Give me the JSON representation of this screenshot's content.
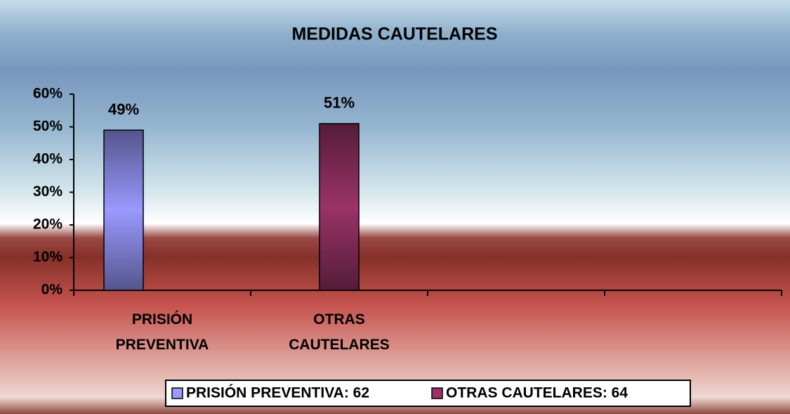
{
  "chart_data": {
    "type": "bar",
    "title": "MEDIDAS CAUTELARES",
    "categories": [
      "PRISIÓN PREVENTIVA",
      "OTRAS CAUTELARES",
      null,
      null
    ],
    "series": [
      {
        "name": "PRISIÓN PREVENTIVA: 62",
        "color": "#9999ff",
        "values": [
          49,
          null,
          null,
          null
        ],
        "value_labels": [
          "49%",
          null,
          null,
          null
        ]
      },
      {
        "name": "OTRAS CAUTELARES: 64",
        "color": "#993366",
        "values": [
          null,
          51,
          null,
          null
        ],
        "value_labels": [
          null,
          "51%",
          null,
          null
        ]
      }
    ],
    "ylim": [
      0,
      60
    ],
    "yticks": [
      {
        "value": 0,
        "label": "0%"
      },
      {
        "value": 10,
        "label": "10%"
      },
      {
        "value": 20,
        "label": "20%"
      },
      {
        "value": 30,
        "label": "30%"
      },
      {
        "value": 40,
        "label": "40%"
      },
      {
        "value": 50,
        "label": "50%"
      },
      {
        "value": 60,
        "label": "60%"
      }
    ],
    "grid": false,
    "legend": "bottom"
  }
}
